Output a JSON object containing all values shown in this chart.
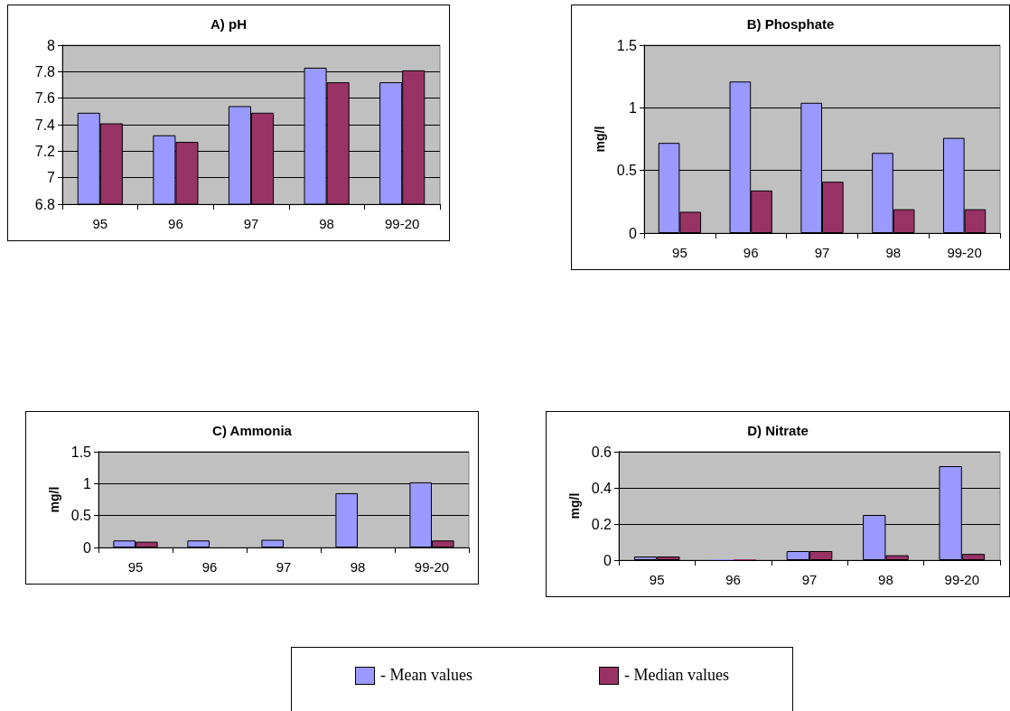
{
  "chart_data": [
    {
      "type": "bar",
      "title": "A) pH",
      "categories": [
        "95",
        "96",
        "97",
        "98",
        "99-20"
      ],
      "series": [
        {
          "name": "- Mean values",
          "color": "#9999ff",
          "values": [
            7.49,
            7.32,
            7.54,
            7.83,
            7.72
          ]
        },
        {
          "name": "- Median values",
          "color": "#993366",
          "values": [
            7.41,
            7.27,
            7.49,
            7.72,
            7.81
          ]
        }
      ],
      "ylim": [
        6.8,
        8
      ],
      "yticks": [
        6.8,
        7,
        7.2,
        7.4,
        7.6,
        7.8,
        8
      ],
      "grid": "y",
      "legend": "bottom"
    },
    {
      "type": "bar",
      "title": "B) Phosphate",
      "ylabel": "mg/l",
      "categories": [
        "95",
        "96",
        "97",
        "98",
        "99-20"
      ],
      "series": [
        {
          "color": "#9999ff",
          "values": [
            0.72,
            1.21,
            1.04,
            0.64,
            0.76
          ]
        },
        {
          "color": "#993366",
          "values": [
            0.17,
            0.34,
            0.41,
            0.19,
            0.19
          ]
        }
      ],
      "ylim": [
        0,
        1.5
      ],
      "yticks": [
        0,
        0.5,
        1,
        1.5
      ],
      "grid": "y"
    },
    {
      "type": "bar",
      "title": "C) Ammonia",
      "ylabel": "mg/l",
      "categories": [
        "95",
        "96",
        "97",
        "98",
        "99-20"
      ],
      "series": [
        {
          "color": "#9999ff",
          "values": [
            0.11,
            0.11,
            0.12,
            0.85,
            1.02
          ]
        },
        {
          "color": "#993366",
          "values": [
            0.09,
            null,
            null,
            null,
            0.11
          ]
        }
      ],
      "ylim": [
        0,
        1.5
      ],
      "yticks": [
        0,
        0.5,
        1,
        1.5
      ],
      "grid": "y"
    },
    {
      "type": "bar",
      "title": "D) Nitrate",
      "ylabel": "mg/l",
      "categories": [
        "95",
        "96",
        "97",
        "98",
        "99-20"
      ],
      "series": [
        {
          "color": "#9999ff",
          "values": [
            0.02,
            0.005,
            0.05,
            0.25,
            0.52
          ]
        },
        {
          "color": "#993366",
          "values": [
            0.02,
            0.005,
            0.05,
            0.027,
            0.034
          ]
        }
      ],
      "ylim": [
        0,
        0.6
      ],
      "yticks": [
        0,
        0.2,
        0.4,
        0.6
      ],
      "grid": "y"
    }
  ]
}
